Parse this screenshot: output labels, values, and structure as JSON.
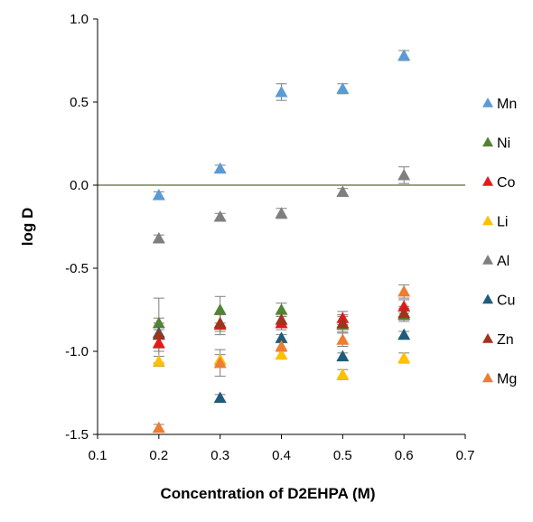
{
  "chart_data": {
    "type": "scatter",
    "title": "",
    "xlabel": "Concentration of D2EHPA (M)",
    "ylabel": "log D",
    "xlim": [
      0.1,
      0.7
    ],
    "ylim": [
      -1.5,
      1.0
    ],
    "xticks": [
      "0.1",
      "0.2",
      "0.3",
      "0.4",
      "0.5",
      "0.6",
      "0.7"
    ],
    "yticks": [
      "1.0",
      "0.5",
      "0.0",
      "-0.5",
      "-1.0",
      "-1.5"
    ],
    "grid": false,
    "reference_line_y": 0,
    "legend_position": "right",
    "x": [
      0.2,
      0.3,
      0.4,
      0.5,
      0.6
    ],
    "series": [
      {
        "name": "Mn",
        "color": "#5B9BD5",
        "values": [
          -0.06,
          0.1,
          0.56,
          0.58,
          0.78
        ],
        "error": [
          0.02,
          0.02,
          0.05,
          0.03,
          0.03
        ]
      },
      {
        "name": "Ni",
        "color": "#548235",
        "values": [
          -0.83,
          -0.75,
          -0.75,
          -0.84,
          -0.78
        ],
        "error": [
          0.15,
          0.08,
          0.04,
          0.05,
          0.04
        ]
      },
      {
        "name": "Co",
        "color": "#E31A1C",
        "values": [
          -0.95,
          -0.84,
          -0.83,
          -0.8,
          -0.73
        ],
        "error": [
          0.12,
          0.06,
          0.04,
          0.04,
          0.04
        ]
      },
      {
        "name": "Li",
        "color": "#FFC000",
        "values": [
          -1.06,
          -1.05,
          -1.02,
          -1.14,
          -1.04
        ],
        "error": [
          0.03,
          0.03,
          0.02,
          0.03,
          0.03
        ]
      },
      {
        "name": "Al",
        "color": "#7F7F7F",
        "values": [
          -0.32,
          -0.19,
          -0.17,
          -0.04,
          0.06
        ],
        "error": [
          0.02,
          0.02,
          0.03,
          0.02,
          0.05
        ]
      },
      {
        "name": "Cu",
        "color": "#1F5C7A",
        "values": [
          -0.89,
          -1.28,
          -0.92,
          -1.03,
          -0.9
        ],
        "error": [
          0.02,
          0.02,
          0.02,
          0.02,
          0.02
        ]
      },
      {
        "name": "Zn",
        "color": "#A0331C",
        "values": [
          -0.9,
          -0.83,
          -0.81,
          -0.83,
          -0.77
        ],
        "error": [
          0.1,
          0.05,
          0.04,
          0.05,
          0.04
        ]
      },
      {
        "name": "Mg",
        "color": "#ED7D31",
        "values": [
          -1.46,
          -1.07,
          -0.97,
          -0.93,
          -0.64
        ],
        "error": [
          0.02,
          0.08,
          0.03,
          0.04,
          0.04
        ]
      }
    ]
  }
}
